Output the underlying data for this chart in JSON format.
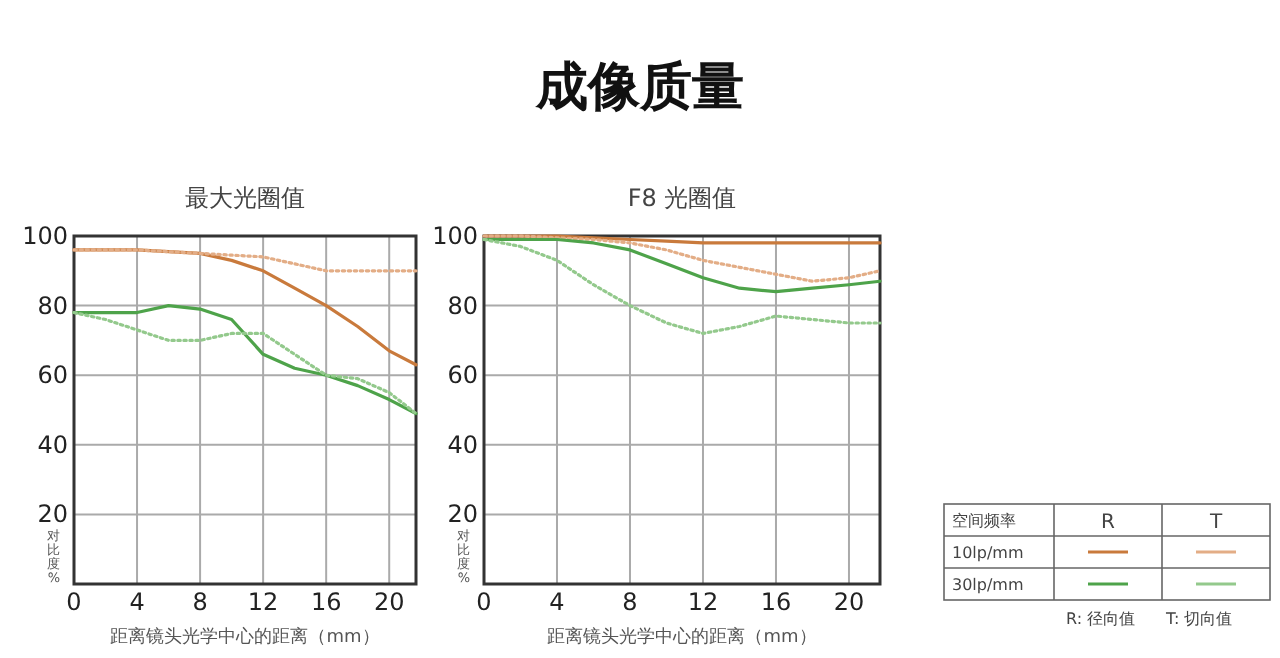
{
  "chart_data": [
    {
      "type": "line",
      "subtitle": "最大光圈值",
      "xlabel": "距离镜头光学中心的距离（mm）",
      "ylabel": "对比度%",
      "x": [
        0,
        2,
        4,
        6,
        8,
        10,
        12,
        14,
        16,
        18,
        20,
        21.7
      ],
      "xlim": [
        0,
        21.7
      ],
      "ylim": [
        0,
        100
      ],
      "xticks": [
        0,
        4,
        8,
        12,
        16,
        20
      ],
      "yticks": [
        {
          "value": 0,
          "label": null
        },
        20,
        40,
        60,
        80,
        100
      ],
      "grid": true,
      "marker": "none",
      "series": [
        {
          "color": "#c97a3c",
          "line_style": "solid",
          "values": [
            96,
            96,
            96,
            95.5,
            95,
            93,
            90,
            85,
            80,
            74,
            67,
            63
          ]
        },
        {
          "color": "#e3ad86",
          "line_style": "dotted",
          "values": [
            96,
            96,
            96,
            95.5,
            95,
            94.5,
            94,
            92,
            90,
            90,
            90,
            90
          ]
        },
        {
          "color": "#4ea34a",
          "line_style": "solid",
          "values": [
            78,
            78,
            78,
            80,
            79,
            76,
            66,
            62,
            60,
            57,
            53,
            49
          ]
        },
        {
          "color": "#93c98c",
          "line_style": "dotted",
          "values": [
            78,
            76,
            73,
            70,
            70,
            72,
            72,
            66,
            60,
            59,
            55,
            49
          ]
        }
      ]
    },
    {
      "type": "line",
      "subtitle": "F8 光圈值",
      "xlabel": "距离镜头光学中心的距离（mm）",
      "ylabel": "对比度%",
      "x": [
        0,
        2,
        4,
        6,
        8,
        10,
        12,
        14,
        16,
        18,
        20,
        21.7
      ],
      "xlim": [
        0,
        21.7
      ],
      "ylim": [
        0,
        100
      ],
      "xticks": [
        0,
        4,
        8,
        12,
        16,
        20
      ],
      "yticks": [
        {
          "value": 0,
          "label": null
        },
        20,
        40,
        60,
        80,
        100
      ],
      "grid": true,
      "marker": "none",
      "series": [
        {
          "color": "#c97a3c",
          "line_style": "solid",
          "values": [
            100,
            100,
            100,
            99.5,
            99,
            98.5,
            98,
            98,
            98,
            98,
            98,
            98
          ]
        },
        {
          "color": "#e3ad86",
          "line_style": "dotted",
          "values": [
            100,
            100,
            99.5,
            99,
            98,
            96,
            93,
            91,
            89,
            87,
            88,
            90
          ]
        },
        {
          "color": "#4ea34a",
          "line_style": "solid",
          "values": [
            99,
            99,
            99,
            98,
            96,
            92,
            88,
            85,
            84,
            85,
            86,
            87
          ]
        },
        {
          "color": "#93c98c",
          "line_style": "dotted",
          "values": [
            99,
            97,
            93,
            86,
            80,
            75,
            72,
            74,
            77,
            76,
            75,
            75
          ]
        }
      ]
    },
    {
      "type": "other",
      "title": "成像质量",
      "legend_title": "空间频率",
      "categories": [
        "R",
        "T"
      ],
      "y_categories": [
        "10lp/mm",
        "30lp/mm"
      ],
      "annotations": [
        "R: 径向值",
        "T: 切向值"
      ]
    }
  ]
}
